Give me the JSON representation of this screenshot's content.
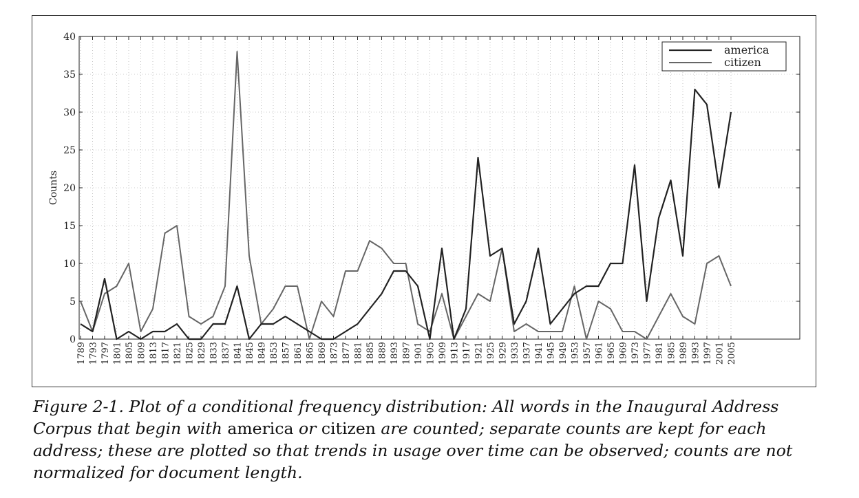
{
  "chart_data": {
    "type": "line",
    "ylabel": "Counts",
    "xlabel": "",
    "ylim": [
      0,
      40
    ],
    "yticks": [
      0,
      5,
      10,
      15,
      20,
      25,
      30,
      35,
      40
    ],
    "grid": true,
    "legend_position": "top-right",
    "x": [
      1789,
      1793,
      1797,
      1801,
      1805,
      1809,
      1813,
      1817,
      1821,
      1825,
      1829,
      1833,
      1837,
      1841,
      1845,
      1849,
      1853,
      1857,
      1861,
      1865,
      1869,
      1873,
      1877,
      1881,
      1885,
      1889,
      1893,
      1897,
      1901,
      1905,
      1909,
      1913,
      1917,
      1921,
      1925,
      1929,
      1933,
      1937,
      1941,
      1945,
      1949,
      1953,
      1957,
      1961,
      1965,
      1969,
      1973,
      1977,
      1981,
      1985,
      1989,
      1993,
      1997,
      2001,
      2005
    ],
    "series": [
      {
        "name": "america",
        "color": "#222222",
        "width": 2.2,
        "values": [
          2,
          1,
          8,
          0,
          1,
          0,
          1,
          1,
          2,
          0,
          0,
          2,
          2,
          7,
          0,
          2,
          2,
          3,
          2,
          1,
          0,
          0,
          1,
          2,
          4,
          6,
          9,
          9,
          7,
          0,
          12,
          0,
          4,
          24,
          11,
          12,
          2,
          5,
          12,
          2,
          4,
          6,
          7,
          7,
          10,
          10,
          23,
          5,
          16,
          21,
          11,
          33,
          31,
          20,
          30
        ]
      },
      {
        "name": "citizen",
        "color": "#666666",
        "width": 2.0,
        "values": [
          5,
          1,
          6,
          7,
          10,
          1,
          4,
          14,
          15,
          3,
          2,
          3,
          7,
          38,
          11,
          2,
          4,
          7,
          7,
          0,
          5,
          3,
          9,
          9,
          13,
          12,
          10,
          10,
          2,
          1,
          6,
          0,
          3,
          6,
          5,
          12,
          1,
          2,
          1,
          1,
          1,
          7,
          0,
          5,
          4,
          1,
          1,
          0,
          3,
          6,
          3,
          2,
          10,
          11,
          7
        ]
      }
    ]
  },
  "caption": {
    "prefix": "Figure 2-1. Plot of a conditional frequency distribution: All words in the Inaugural Address Corpus that begin with ",
    "word1": "america",
    "connector": " or ",
    "word2": "citizen",
    "suffix": " are counted; separate counts are kept for each address; these are plotted so that trends in usage over time can be observed; counts are not normalized for document length."
  }
}
